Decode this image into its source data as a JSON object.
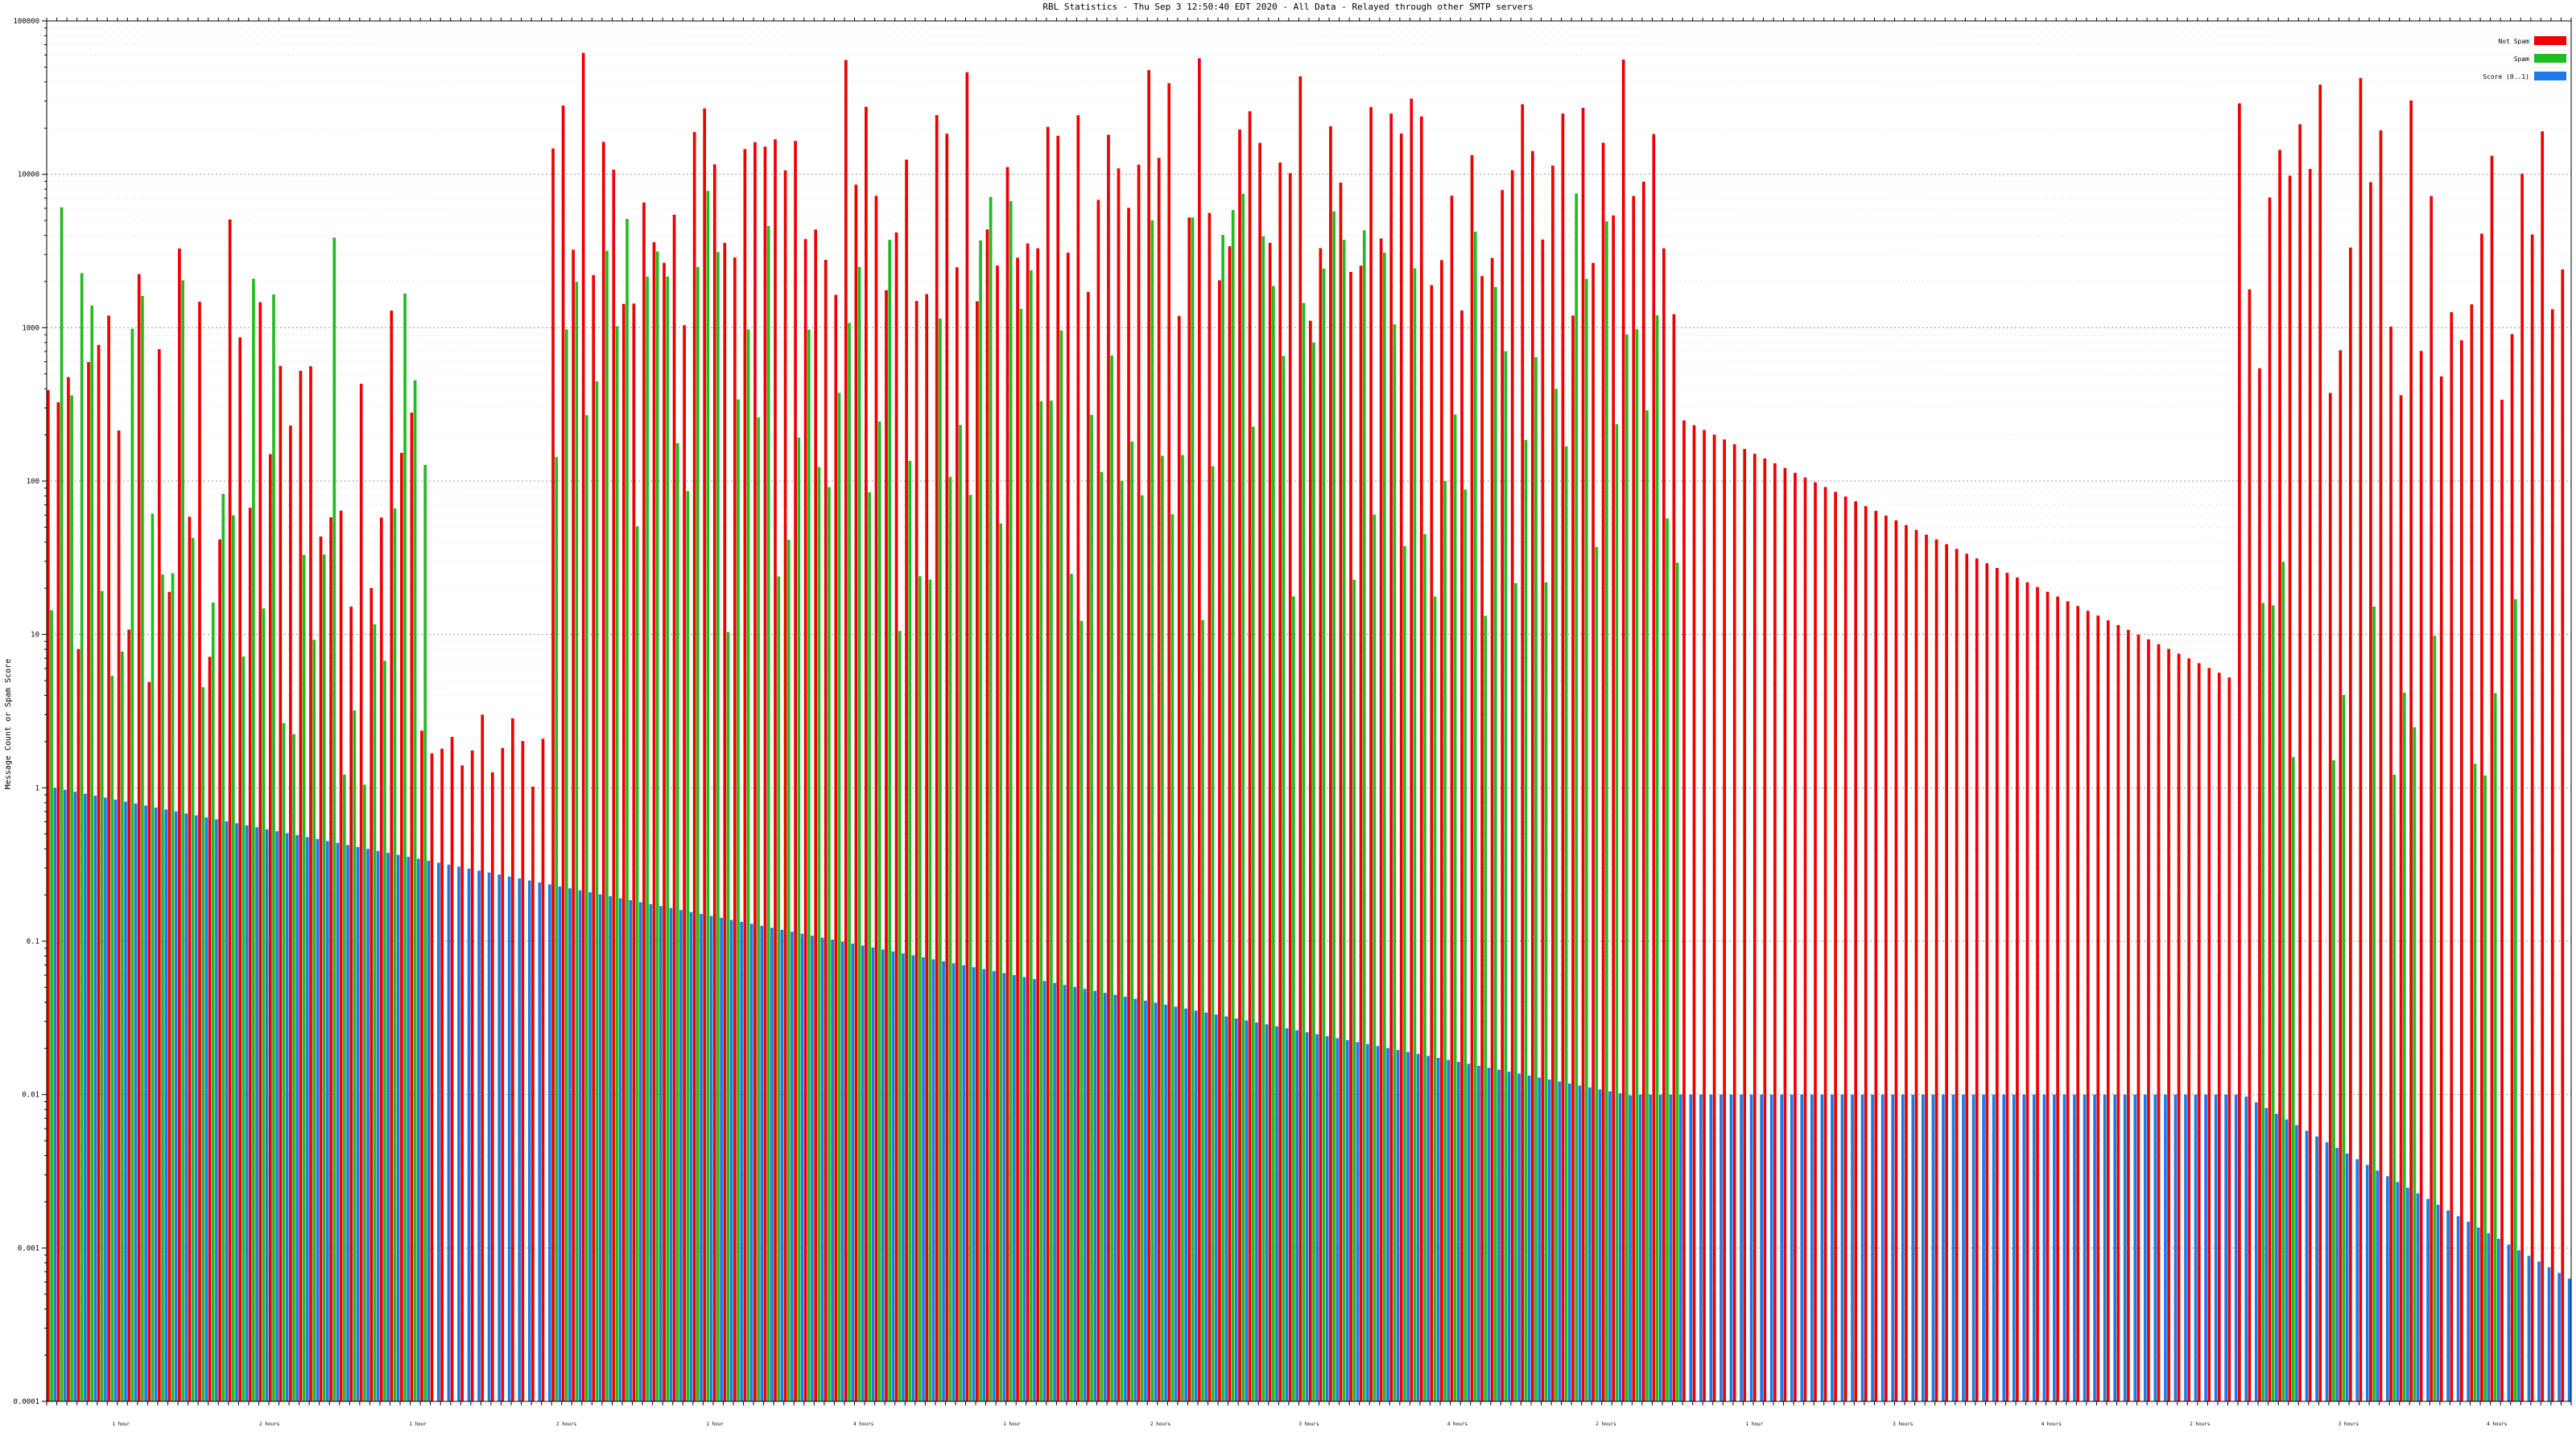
{
  "chart_data": {
    "type": "bar",
    "title": "RBL Statistics - Thu Sep  3 12:50:40 EDT 2020 - All Data - Relayed through other SMTP servers",
    "xlabel": "",
    "ylabel": "Message Count or Spam Score",
    "yscale": "log",
    "ylim": [
      0.0001,
      100000
    ],
    "y_ticks": [
      "0.0001",
      "0.001",
      "0.01",
      "0.1",
      "1",
      "10",
      "100",
      "1000",
      "10000",
      "100000"
    ],
    "grid": true,
    "legend_position": "top-right",
    "series": [
      {
        "name": "Not Spam",
        "color": "#ee0000"
      },
      {
        "name": "Spam",
        "color": "#22bb22"
      },
      {
        "name": "Score (0..1)",
        "color": "#1e7ae6"
      }
    ],
    "category_count": 250,
    "x_group_labels": [
      "1 hour",
      "2 hours",
      "1 hour",
      "2 hours",
      "1 hour",
      "4 hours",
      "1 hour",
      "2 hours",
      "3 hours",
      "4 hours",
      "2 hours",
      "1 hour",
      "3 hours",
      "4 hours",
      "2 hours",
      "3 hours",
      "4 hours"
    ]
  }
}
